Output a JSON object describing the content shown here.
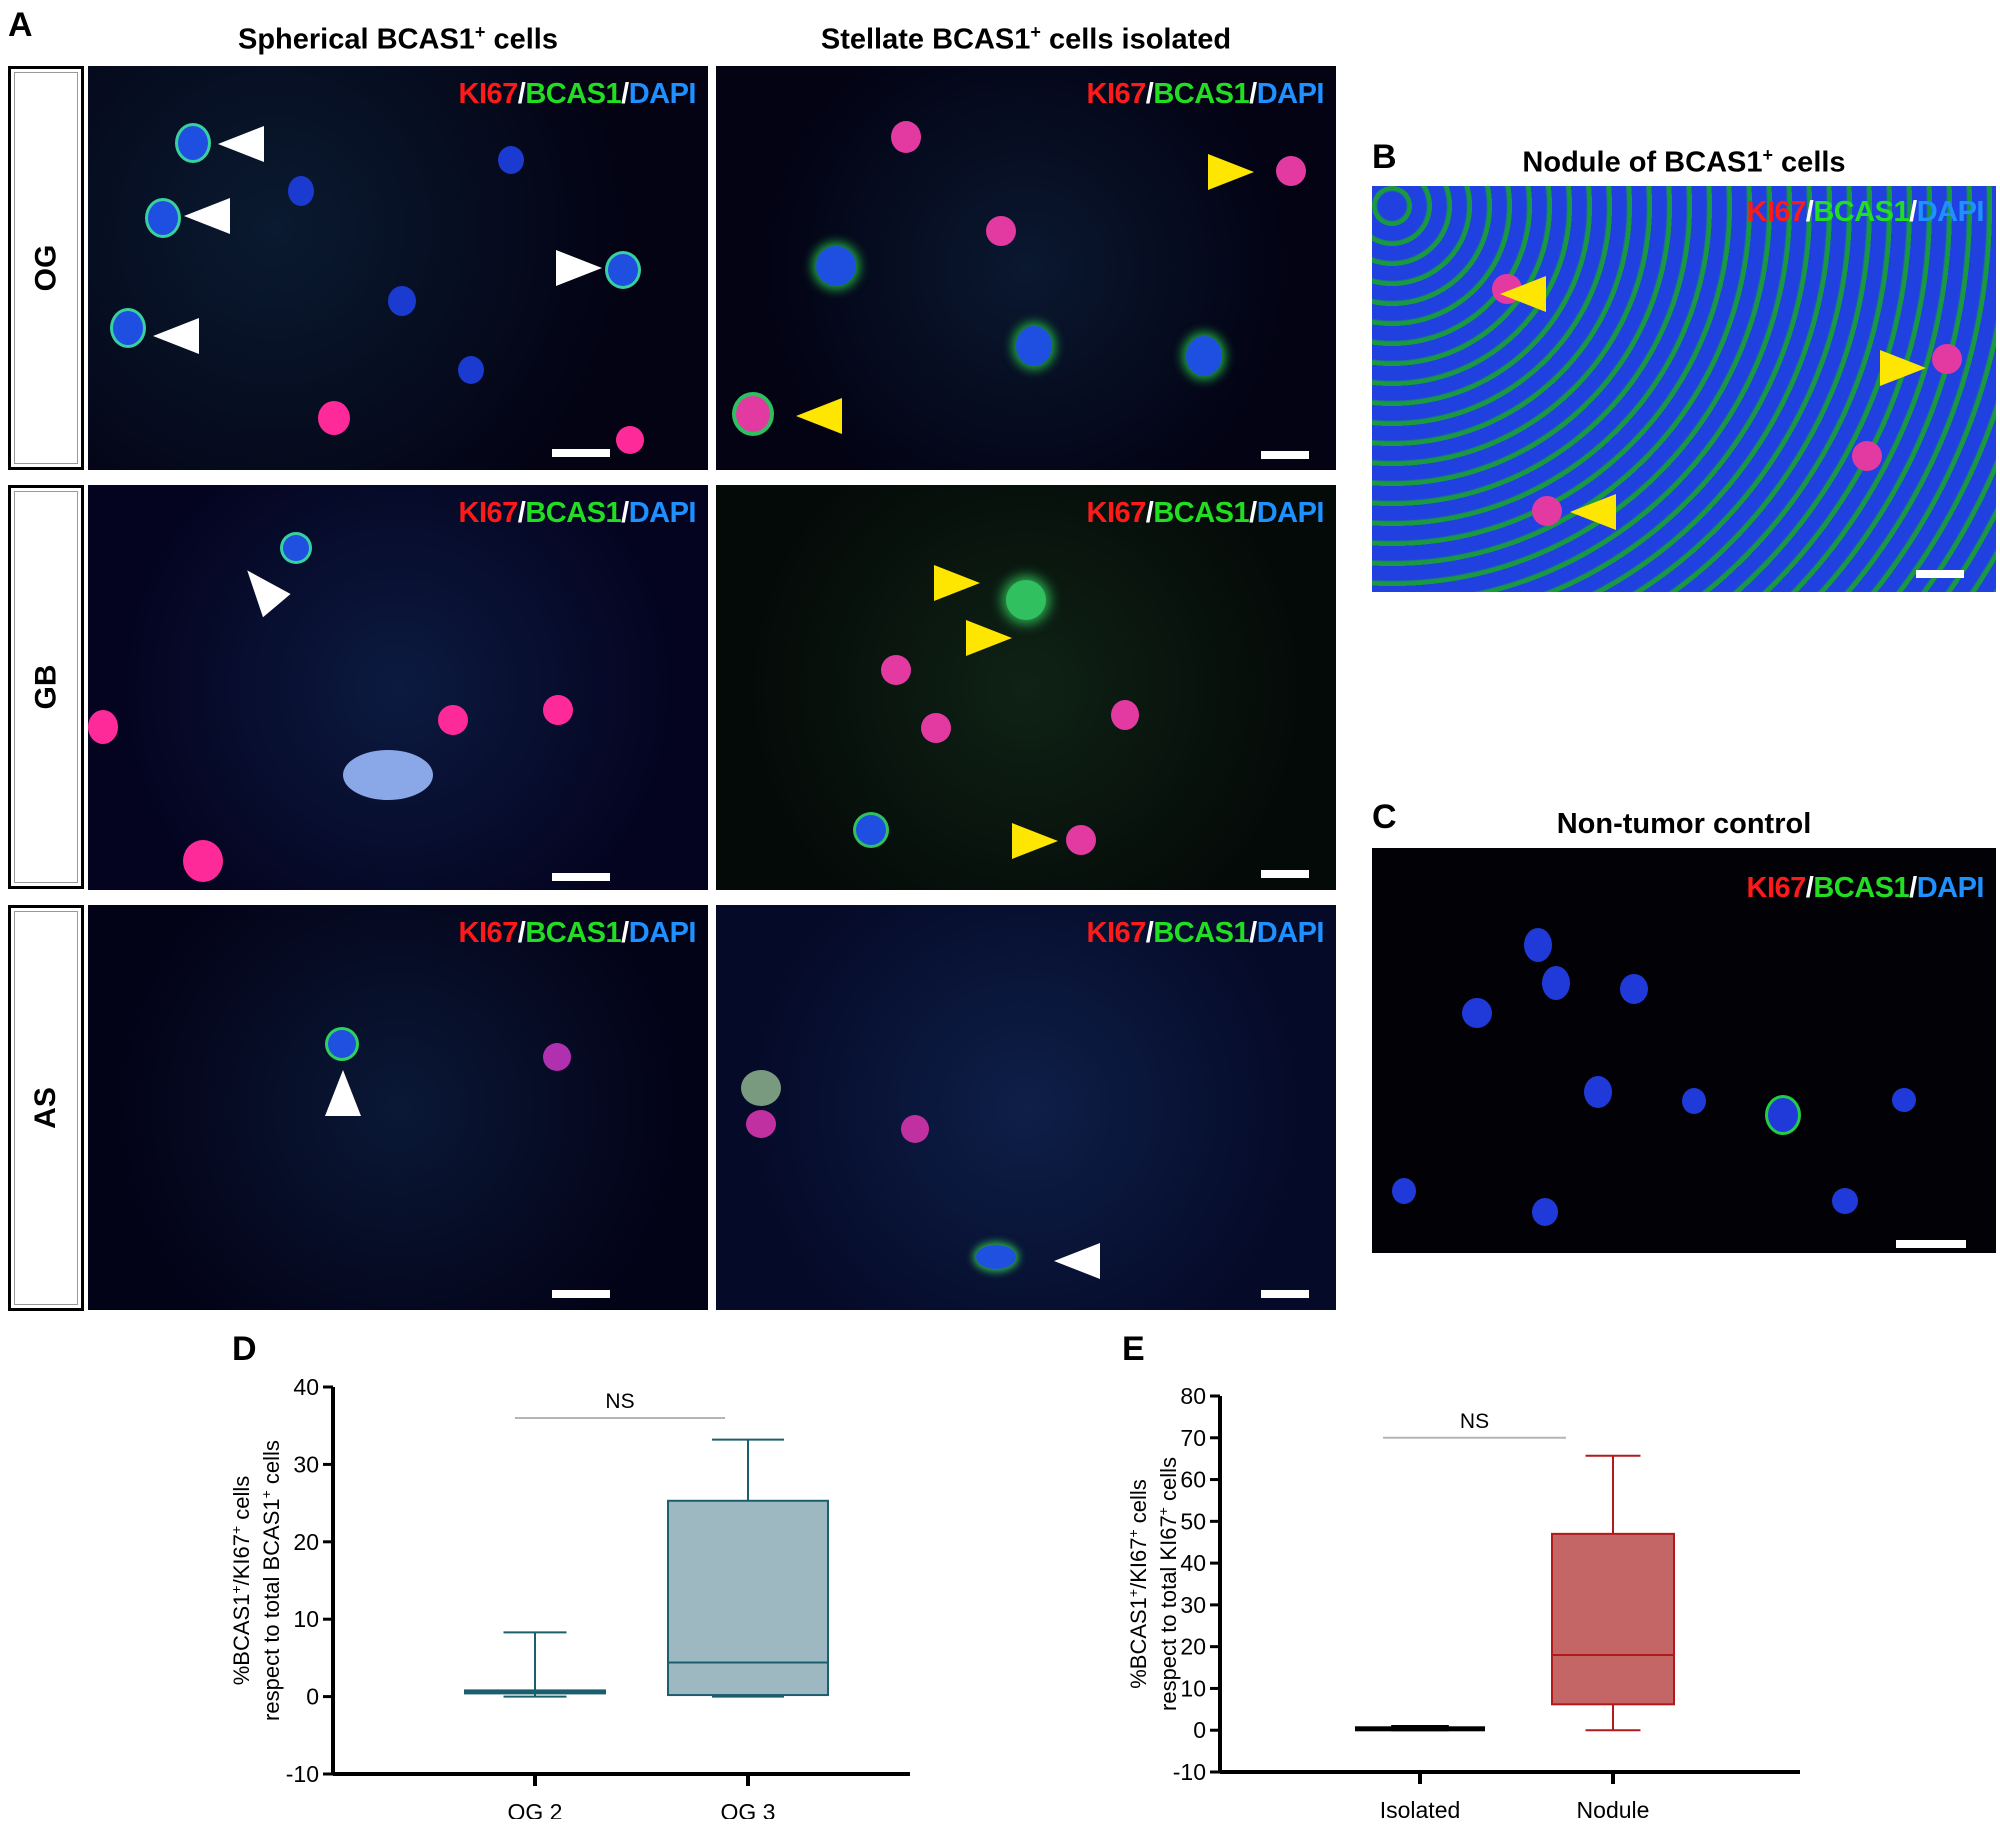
{
  "figure": {
    "panel_a": {
      "letter": "A",
      "col_titles": [
        "Spherical BCAS1",
        "Stellate BCAS1"
      ],
      "col_title_suffixes": [
        " cells",
        " cells isolated"
      ],
      "superscript": "+",
      "row_labels": [
        "OG",
        "GB",
        "AS"
      ],
      "stain_label": {
        "ki67": "KI67",
        "bcas1": "BCAS1",
        "dapi": "DAPI",
        "sep": "/"
      }
    },
    "panel_b": {
      "letter": "B",
      "title": "Nodule of BCAS1",
      "title_suffix": " cells",
      "superscript": "+"
    },
    "panel_c": {
      "letter": "C",
      "title": "Non-tumor control"
    },
    "panel_d": {
      "letter": "D"
    },
    "panel_e": {
      "letter": "E"
    },
    "colors": {
      "ki67": "#ff1a1a",
      "bcas1": "#22dd22",
      "dapi": "#1e90ff",
      "arrow_white": "#ffffff",
      "arrow_yellow": "#ffe600",
      "box_d_fill": "#9db8c0",
      "box_d_stroke": "#1b5e6e",
      "box_e_fill": "#c46666",
      "box_e_stroke": "#b01a1a"
    }
  },
  "chart_data": [
    {
      "panel": "D",
      "type": "box",
      "title": "",
      "xlabel": "",
      "ylabel": "%BCAS1+/KI67+ cells respect to total BCAS1+ cells",
      "ylabel_line1": "%BCAS1",
      "ylabel_line2": "respect to total BCAS1",
      "ylim": [
        -10,
        40
      ],
      "yticks": [
        -10,
        0,
        10,
        20,
        30,
        40
      ],
      "categories": [
        "OG 2",
        "OG 3"
      ],
      "series": [
        {
          "name": "OG 2",
          "min": 0,
          "q1": 0.5,
          "median": 0.7,
          "q3": 0.8,
          "max": 8.3
        },
        {
          "name": "OG 3",
          "min": 0,
          "q1": 0.2,
          "median": 4.4,
          "q3": 25.3,
          "max": 33.2
        }
      ],
      "annotation": {
        "text": "NS",
        "y": 36
      },
      "grid": false
    },
    {
      "panel": "E",
      "type": "box",
      "title": "",
      "xlabel": "",
      "ylabel": "%BCAS1+/KI67+ cells respect to total KI67+ cells",
      "ylabel_line1": "%BCAS1",
      "ylabel_line2": "respect to total KI67",
      "ylim": [
        -10,
        80
      ],
      "yticks": [
        -10,
        0,
        10,
        20,
        30,
        40,
        50,
        60,
        70,
        80
      ],
      "categories": [
        "Isolated",
        "Nodule"
      ],
      "series": [
        {
          "name": "Isolated",
          "min": 0,
          "q1": 0.3,
          "median": 0.5,
          "q3": 0.7,
          "max": 1.0
        },
        {
          "name": "Nodule",
          "min": 0,
          "q1": 6.2,
          "median": 18.0,
          "q3": 47.0,
          "max": 65.7
        }
      ],
      "annotation": {
        "text": "NS",
        "y": 70
      },
      "grid": false
    }
  ]
}
